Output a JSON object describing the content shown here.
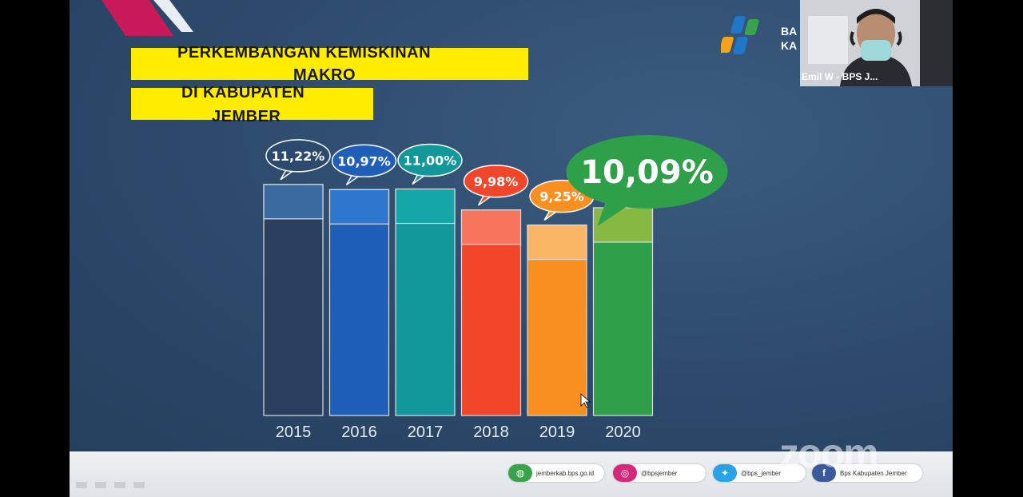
{
  "title": {
    "line1": "PERKEMBANGAN  KEMISKINAN",
    "line2": "MAKRO",
    "line3": "DI KABUPATEN",
    "line4": "JEMBER"
  },
  "logo": {
    "line1": "BA",
    "line2": "KA"
  },
  "participant": {
    "name": "Emil W - BPS J..."
  },
  "watermark": "zoom",
  "footer": {
    "links": [
      {
        "icon": "globe-icon",
        "text": "jemberkab.bps.go.id",
        "color": "#3aa24b"
      },
      {
        "icon": "instagram-icon",
        "text": "@bpsjember",
        "color": "#d6287b"
      },
      {
        "icon": "twitter-icon",
        "text": "@bps_jember",
        "color": "#2aa3e6"
      },
      {
        "icon": "facebook-icon",
        "text": "Bps Kabupaten Jember",
        "color": "#3b5a9c"
      }
    ]
  },
  "chart_data": {
    "type": "bar",
    "categories": [
      "2015",
      "2016",
      "2017",
      "2018",
      "2019",
      "2020"
    ],
    "values": [
      11.22,
      10.97,
      11.0,
      9.98,
      9.25,
      10.09
    ],
    "labels": [
      "11,22%",
      "10,97%",
      "11,00%",
      "9,98%",
      "9,25%",
      "10,09%"
    ],
    "colors": [
      "#2c3e5e",
      "#1f5fb8",
      "#12979a",
      "#f2462a",
      "#f88f1f",
      "#2fa04a"
    ],
    "cap_colors": [
      "#3b6aa0",
      "#2f78cf",
      "#15a7a7",
      "#f8755d",
      "#fbb665",
      "#87b842"
    ],
    "bubble_colors": [
      "#2c4a6e",
      "#1f5fb8",
      "#12979a",
      "#f2462a",
      "#f88f1f",
      "#2fa04a"
    ],
    "ylim": [
      0,
      13
    ],
    "grid": false,
    "legend": "none"
  }
}
